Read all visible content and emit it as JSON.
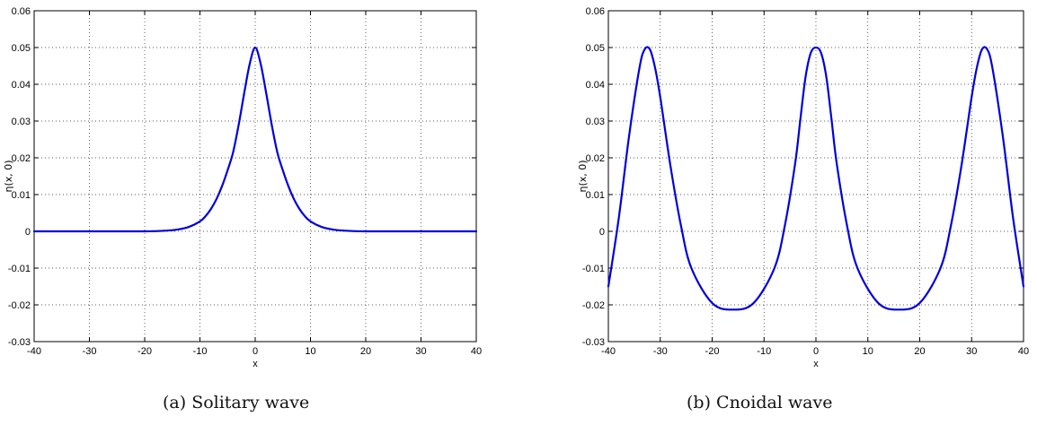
{
  "chart_data": [
    {
      "type": "line",
      "panel": "(a)",
      "caption": "Solitary wave",
      "xlabel": "x",
      "ylabel": "η(x, 0)",
      "xlim": [
        -40,
        40
      ],
      "ylim": [
        -0.03,
        0.06
      ],
      "xticks": [
        -40,
        -30,
        -20,
        -10,
        0,
        10,
        20,
        30,
        40
      ],
      "yticks": [
        -0.03,
        -0.02,
        -0.01,
        0,
        0.01,
        0.02,
        0.03,
        0.04,
        0.05,
        0.06
      ],
      "grid": true,
      "line_color": "#0000dd",
      "series": [
        {
          "x": [
            -40,
            -30,
            -20,
            -16,
            -14,
            -12,
            -10,
            -9,
            -8,
            -7,
            -6,
            -5,
            -4,
            -3,
            -2,
            -1,
            0,
            1,
            2,
            3,
            4,
            5,
            6,
            7,
            8,
            9,
            10,
            12,
            14,
            16,
            20,
            30,
            40
          ],
          "values": [
            0,
            0,
            0,
            0.0002,
            0.0005,
            0.0012,
            0.0027,
            0.0041,
            0.0061,
            0.0088,
            0.0123,
            0.0166,
            0.0215,
            0.0289,
            0.0375,
            0.0455,
            0.05,
            0.0455,
            0.0375,
            0.0289,
            0.0215,
            0.0166,
            0.0123,
            0.0088,
            0.0061,
            0.0041,
            0.0027,
            0.0012,
            0.0005,
            0.0002,
            0,
            0,
            0
          ]
        }
      ]
    },
    {
      "type": "line",
      "panel": "(b)",
      "caption": "Cnoidal wave",
      "xlabel": "x",
      "ylabel": "η(x, 0)",
      "xlim": [
        -40,
        40
      ],
      "ylim": [
        -0.03,
        0.06
      ],
      "xticks": [
        -40,
        -30,
        -20,
        -10,
        0,
        10,
        20,
        30,
        40
      ],
      "yticks": [
        -0.03,
        -0.02,
        -0.01,
        0,
        0.01,
        0.02,
        0.03,
        0.04,
        0.05,
        0.06
      ],
      "grid": true,
      "line_color": "#0000dd",
      "series": [
        {
          "x": [
            -40,
            -38,
            -36,
            -34,
            -33,
            -32,
            -31,
            -30,
            -28,
            -26,
            -24,
            -20,
            -16,
            -12,
            -8,
            -6,
            -4,
            -3,
            -2,
            -1,
            0,
            1,
            2,
            3,
            4,
            6,
            8,
            12,
            16,
            20,
            24,
            26,
            28,
            30,
            31,
            32,
            33,
            34,
            36,
            38,
            40
          ],
          "values": [
            -0.015,
            0.0035,
            0.026,
            0.0445,
            0.0495,
            0.0495,
            0.0445,
            0.0365,
            0.0175,
            0.0015,
            -0.01,
            -0.0195,
            -0.0213,
            -0.0195,
            -0.01,
            0.0015,
            0.0185,
            0.0305,
            0.042,
            0.0485,
            0.05,
            0.0485,
            0.042,
            0.0305,
            0.0185,
            0.0015,
            -0.01,
            -0.0195,
            -0.0213,
            -0.0195,
            -0.01,
            0.0015,
            0.0175,
            0.0365,
            0.0445,
            0.0495,
            0.0495,
            0.0445,
            0.026,
            0.0035,
            -0.015
          ]
        }
      ]
    }
  ],
  "captions": {
    "a_label": "(a) Solitary wave",
    "b_label": "(b) Cnoidal wave"
  }
}
